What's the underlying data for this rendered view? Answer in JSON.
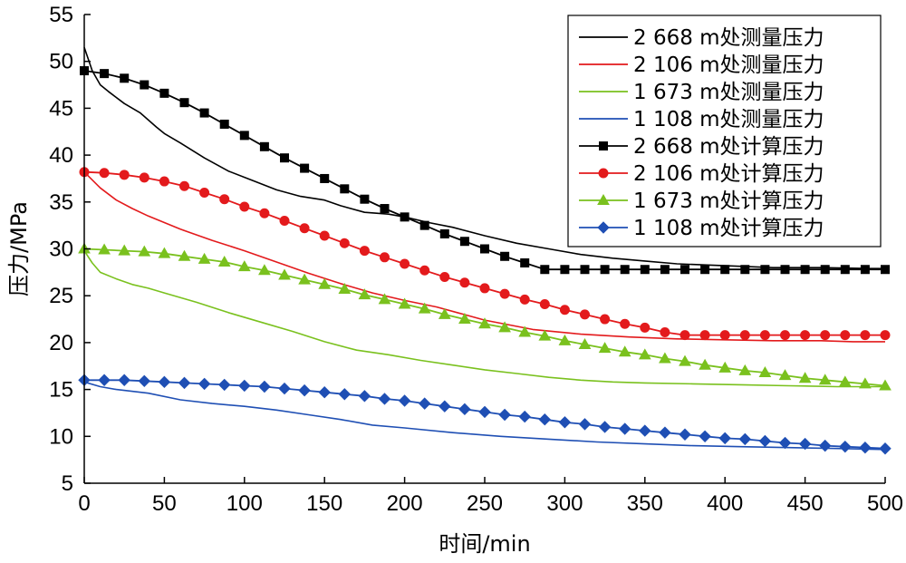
{
  "chart_data": {
    "type": "line",
    "xlabel": "时间/min",
    "ylabel": "压力/MPa",
    "xlim": [
      0,
      500
    ],
    "ylim": [
      5,
      55
    ],
    "xticks": [
      0,
      50,
      100,
      150,
      200,
      250,
      300,
      350,
      400,
      450,
      500
    ],
    "yticks": [
      5,
      10,
      15,
      20,
      25,
      30,
      35,
      40,
      45,
      50,
      55
    ],
    "grid": false,
    "legend_position": "top-right",
    "series": [
      {
        "name": "2 668 m处测量压力",
        "color": "#000000",
        "marker": "none",
        "x": [
          0,
          5,
          10,
          15,
          25,
          35,
          45,
          50,
          60,
          75,
          90,
          105,
          120,
          135,
          150,
          160,
          175,
          190,
          200,
          215,
          230,
          250,
          270,
          290,
          310,
          330,
          350,
          370,
          400,
          430,
          460,
          490,
          500
        ],
        "y": [
          51.5,
          49,
          47.5,
          46.8,
          45.5,
          44.5,
          43,
          42.3,
          41.3,
          39.7,
          38.3,
          37.3,
          36.3,
          35.6,
          35.2,
          34.6,
          33.9,
          33.7,
          33.4,
          32.8,
          32.3,
          31.4,
          30.6,
          30.0,
          29.4,
          29.0,
          28.7,
          28.4,
          28.2,
          28.0,
          28.0,
          27.9,
          27.9
        ]
      },
      {
        "name": "2 106 m处测量压力",
        "color": "#e31a1c",
        "marker": "none",
        "x": [
          0,
          10,
          20,
          30,
          40,
          50,
          60,
          80,
          100,
          120,
          140,
          160,
          180,
          200,
          220,
          250,
          280,
          310,
          340,
          370,
          400,
          430,
          460,
          480,
          500
        ],
        "y": [
          38.2,
          36.5,
          35.2,
          34.3,
          33.5,
          32.8,
          32.1,
          30.9,
          29.8,
          28.6,
          27.4,
          26.3,
          25.3,
          24.5,
          23.8,
          22.4,
          21.4,
          20.9,
          20.6,
          20.4,
          20.3,
          20.2,
          20.2,
          20.1,
          20.1
        ]
      },
      {
        "name": "1 673 m处测量压力",
        "color": "#7ac11e",
        "marker": "none",
        "x": [
          0,
          5,
          10,
          20,
          30,
          40,
          50,
          70,
          90,
          110,
          130,
          150,
          170,
          190,
          210,
          230,
          250,
          270,
          290,
          310,
          330,
          350,
          380,
          410,
          440,
          470,
          500
        ],
        "y": [
          29.8,
          28.5,
          27.5,
          26.8,
          26.2,
          25.8,
          25.3,
          24.3,
          23.2,
          22.2,
          21.2,
          20.1,
          19.2,
          18.7,
          18.1,
          17.6,
          17.1,
          16.7,
          16.3,
          16.0,
          15.8,
          15.7,
          15.6,
          15.5,
          15.4,
          15.3,
          15.3
        ]
      },
      {
        "name": "1 108 m处测量压力",
        "color": "#1f4fb4",
        "marker": "none",
        "x": [
          0,
          10,
          20,
          40,
          60,
          80,
          100,
          120,
          140,
          160,
          180,
          200,
          230,
          260,
          290,
          320,
          350,
          380,
          410,
          440,
          470,
          500
        ],
        "y": [
          15.8,
          15.3,
          15.0,
          14.6,
          13.9,
          13.5,
          13.2,
          12.8,
          12.3,
          11.8,
          11.2,
          10.9,
          10.4,
          10.0,
          9.7,
          9.4,
          9.2,
          9.0,
          8.9,
          8.8,
          8.7,
          8.6
        ]
      },
      {
        "name": "2 668 m处计算压力",
        "color": "#000000",
        "marker": "square",
        "x": [
          0,
          12.5,
          25,
          37.5,
          50,
          62.5,
          75,
          87.5,
          100,
          112.5,
          125,
          137.5,
          150,
          162.5,
          175,
          187.5,
          200,
          212.5,
          225,
          237.5,
          250,
          262.5,
          275,
          287.5,
          300,
          312.5,
          325,
          337.5,
          350,
          362.5,
          375,
          387.5,
          400,
          412.5,
          425,
          437.5,
          450,
          462.5,
          475,
          487.5,
          500
        ],
        "y": [
          49.0,
          48.7,
          48.2,
          47.5,
          46.6,
          45.6,
          44.5,
          43.3,
          42.1,
          40.9,
          39.7,
          38.6,
          37.5,
          36.4,
          35.3,
          34.3,
          33.4,
          32.5,
          31.6,
          30.8,
          30.0,
          29.2,
          28.5,
          27.8,
          27.8,
          27.8,
          27.8,
          27.8,
          27.8,
          27.8,
          27.8,
          27.8,
          27.8,
          27.8,
          27.8,
          27.8,
          27.8,
          27.8,
          27.8,
          27.8,
          27.8
        ]
      },
      {
        "name": "2 106 m处计算压力",
        "color": "#e31a1c",
        "marker": "circle",
        "x": [
          0,
          12.5,
          25,
          37.5,
          50,
          62.5,
          75,
          87.5,
          100,
          112.5,
          125,
          137.5,
          150,
          162.5,
          175,
          187.5,
          200,
          212.5,
          225,
          237.5,
          250,
          262.5,
          275,
          287.5,
          300,
          312.5,
          325,
          337.5,
          350,
          362.5,
          375,
          387.5,
          400,
          412.5,
          425,
          437.5,
          450,
          462.5,
          475,
          487.5,
          500
        ],
        "y": [
          38.2,
          38.1,
          37.9,
          37.6,
          37.2,
          36.7,
          36.0,
          35.3,
          34.5,
          33.8,
          33.0,
          32.2,
          31.4,
          30.6,
          29.8,
          29.1,
          28.4,
          27.7,
          27.0,
          26.4,
          25.8,
          25.2,
          24.6,
          24.1,
          23.5,
          23.0,
          22.5,
          22.0,
          21.6,
          21.1,
          20.8,
          20.8,
          20.8,
          20.8,
          20.8,
          20.8,
          20.8,
          20.8,
          20.8,
          20.8,
          20.8
        ]
      },
      {
        "name": "1 673 m处计算压力",
        "color": "#7ac11e",
        "marker": "triangle",
        "x": [
          0,
          12.5,
          25,
          37.5,
          50,
          62.5,
          75,
          87.5,
          100,
          112.5,
          125,
          137.5,
          150,
          162.5,
          175,
          187.5,
          200,
          212.5,
          225,
          237.5,
          250,
          262.5,
          275,
          287.5,
          300,
          312.5,
          325,
          337.5,
          350,
          362.5,
          375,
          387.5,
          400,
          412.5,
          425,
          437.5,
          450,
          462.5,
          475,
          487.5,
          500
        ],
        "y": [
          30.0,
          29.9,
          29.8,
          29.7,
          29.5,
          29.2,
          28.9,
          28.6,
          28.1,
          27.7,
          27.2,
          26.7,
          26.2,
          25.7,
          25.1,
          24.6,
          24.1,
          23.6,
          23.0,
          22.5,
          22.0,
          21.6,
          21.1,
          20.7,
          20.2,
          19.8,
          19.4,
          19.0,
          18.7,
          18.3,
          18.0,
          17.6,
          17.3,
          17.0,
          16.8,
          16.5,
          16.2,
          16.0,
          15.8,
          15.6,
          15.4
        ]
      },
      {
        "name": "1 108 m处计算压力",
        "color": "#1f4fb4",
        "marker": "diamond",
        "x": [
          0,
          12.5,
          25,
          37.5,
          50,
          62.5,
          75,
          87.5,
          100,
          112.5,
          125,
          137.5,
          150,
          162.5,
          175,
          187.5,
          200,
          212.5,
          225,
          237.5,
          250,
          262.5,
          275,
          287.5,
          300,
          312.5,
          325,
          337.5,
          350,
          362.5,
          375,
          387.5,
          400,
          412.5,
          425,
          437.5,
          450,
          462.5,
          475,
          487.5,
          500
        ],
        "y": [
          16.0,
          16.0,
          16.0,
          15.9,
          15.8,
          15.7,
          15.6,
          15.5,
          15.4,
          15.3,
          15.1,
          14.9,
          14.7,
          14.5,
          14.3,
          14.0,
          13.8,
          13.5,
          13.2,
          12.9,
          12.6,
          12.3,
          12.1,
          11.8,
          11.5,
          11.3,
          11.0,
          10.8,
          10.6,
          10.4,
          10.2,
          10.0,
          9.8,
          9.7,
          9.5,
          9.3,
          9.2,
          9.0,
          8.9,
          8.8,
          8.7
        ]
      }
    ]
  }
}
